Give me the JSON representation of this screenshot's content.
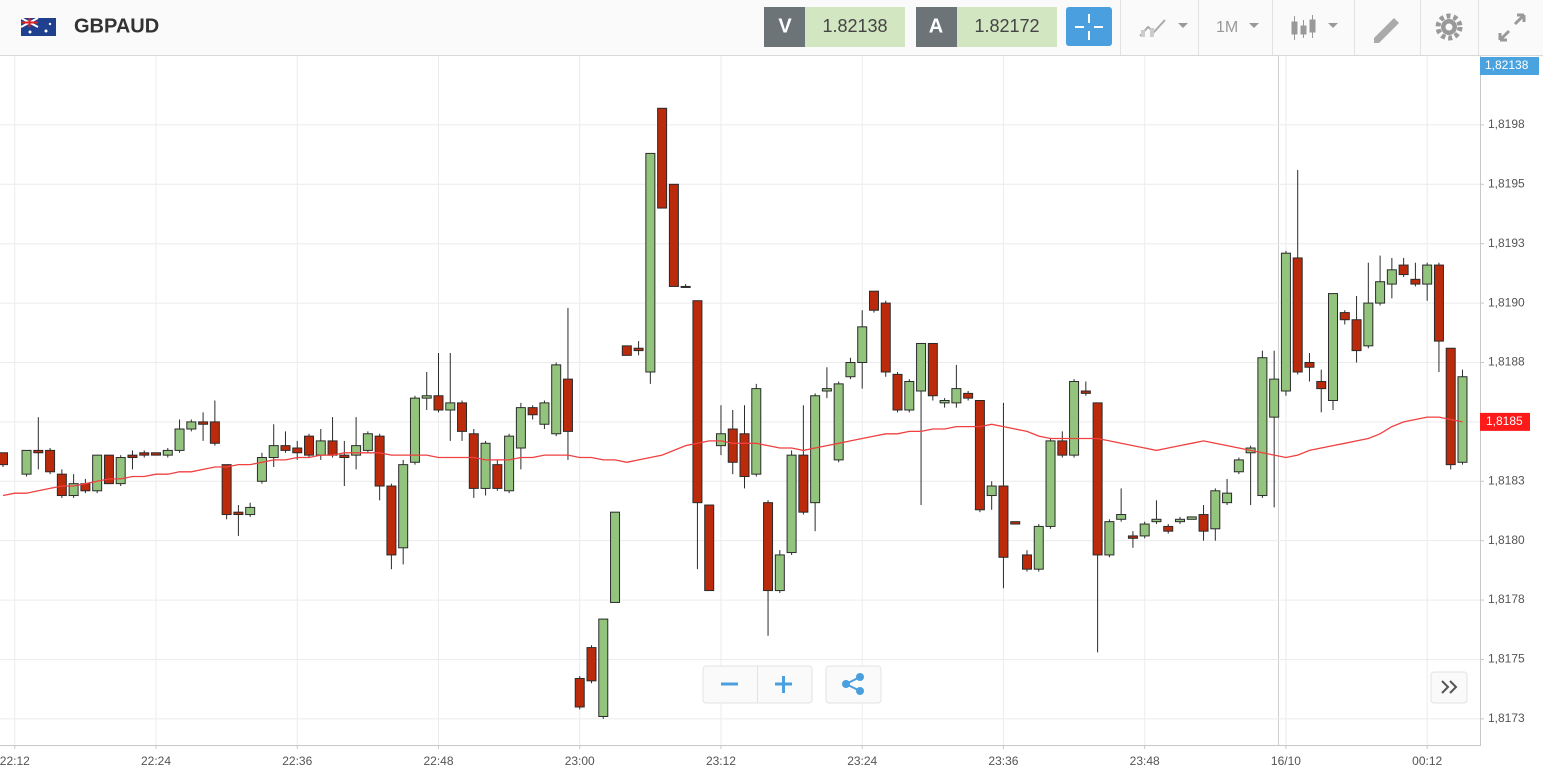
{
  "header": {
    "symbol": "GBPAUD",
    "bid_label": "V",
    "bid": "1.82138",
    "ask_label": "A",
    "ask": "1.82172",
    "timeframe": "1M"
  },
  "chart_data": {
    "type": "candlestick",
    "categories": [
      null,
      "22:12",
      null,
      null,
      null,
      null,
      null,
      null,
      null,
      null,
      null,
      null,
      null,
      "22:24",
      null,
      null,
      null,
      null,
      null,
      null,
      null,
      null,
      null,
      null,
      null,
      "22:36",
      null,
      null,
      null,
      null,
      null,
      null,
      null,
      null,
      null,
      null,
      null,
      "22:48",
      null,
      null,
      null,
      null,
      null,
      null,
      null,
      null,
      null,
      null,
      null,
      "23:00",
      null,
      null,
      null,
      null,
      null,
      null,
      null,
      null,
      null,
      null,
      null,
      "23:12",
      null,
      null,
      null,
      null,
      null,
      null,
      null,
      null,
      null,
      null,
      null,
      "23:24",
      null,
      null,
      null,
      null,
      null,
      null,
      null,
      null,
      null,
      null,
      null,
      "23:36",
      null,
      null,
      null,
      null,
      null,
      null,
      null,
      null,
      null,
      null,
      null,
      "23:48",
      null,
      null,
      null,
      null,
      null,
      null,
      null,
      null,
      null,
      null,
      null,
      "16/10",
      null,
      null,
      null,
      null,
      null,
      null,
      null,
      null,
      null,
      null,
      null,
      "00:12",
      null,
      null,
      null
    ],
    "open": [
      1.81837,
      null,
      1.81828,
      1.81838,
      1.81838,
      1.81828,
      1.81819,
      1.81824,
      1.81821,
      1.81836,
      1.81824,
      1.81836,
      1.81837,
      1.81837,
      1.81836,
      1.81838,
      1.81847,
      1.8185,
      1.8185,
      1.81832,
      1.81812,
      1.81811,
      1.81825,
      1.81835,
      1.8184,
      1.81839,
      1.81844,
      1.81836,
      1.81842,
      1.81836,
      1.81836,
      1.81838,
      1.81844,
      1.81823,
      1.81797,
      1.81833,
      1.8186,
      1.81861,
      1.81855,
      1.81858,
      1.81845,
      1.81822,
      1.81832,
      1.81821,
      1.81839,
      1.81856,
      1.81849,
      1.81845,
      1.81868,
      1.81742,
      1.81755,
      1.81726,
      1.81774,
      1.81882,
      1.81881,
      1.81871,
      1.81982,
      1.8195,
      1.81907,
      1.81901,
      1.81815,
      1.8184,
      1.81847,
      1.81845,
      1.81828,
      1.81816,
      1.81779,
      1.81795,
      1.81836,
      1.81816,
      1.81863,
      1.81834,
      1.81869,
      1.81875,
      1.81905,
      1.819,
      1.8187,
      1.81855,
      1.81863,
      1.81883,
      1.81858,
      1.81858,
      1.81862,
      1.81859,
      1.81819,
      1.81823,
      1.81808,
      1.81794,
      1.81788,
      1.81806,
      1.81842,
      1.81836,
      1.81863,
      1.81858,
      1.81794,
      1.81809,
      1.81802,
      1.81802,
      1.81808,
      1.81806,
      1.81808,
      1.81809,
      1.81811,
      1.81805,
      1.81816,
      1.81829,
      1.81837,
      1.81819,
      1.81852,
      1.81863,
      1.81919,
      1.81875,
      1.81867,
      1.81859,
      1.81896,
      1.81893,
      1.81882,
      1.819,
      1.81908,
      1.81916,
      1.8191,
      1.81908,
      1.81916,
      1.81881,
      1.81833
    ],
    "high": [
      1.81837,
      null,
      1.81838,
      1.81852,
      1.81839,
      1.8183,
      1.81828,
      1.81826,
      1.81836,
      1.81836,
      1.81836,
      1.81838,
      1.81838,
      1.81837,
      1.81839,
      1.81851,
      1.81851,
      1.81854,
      1.81859,
      1.81832,
      1.81815,
      1.81816,
      1.81837,
      1.81849,
      1.81846,
      1.81842,
      1.81845,
      1.81847,
      1.81852,
      1.81842,
      1.81852,
      1.81846,
      1.81845,
      1.81824,
      1.81834,
      1.81861,
      1.81871,
      1.81879,
      1.81879,
      1.81859,
      1.81847,
      1.81842,
      1.81834,
      1.81845,
      1.81858,
      1.81857,
      1.81859,
      1.81875,
      1.81898,
      1.81743,
      1.81756,
      1.81767,
      1.81812,
      1.81882,
      1.81884,
      1.81963,
      1.81982,
      1.8195,
      1.81908,
      1.81901,
      1.81815,
      1.81857,
      1.81855,
      1.81857,
      1.81866,
      1.81817,
      1.81796,
      1.81838,
      1.81857,
      1.81862,
      1.81873,
      1.81867,
      1.81877,
      1.81897,
      1.81905,
      1.81901,
      1.81871,
      1.81868,
      1.81883,
      1.81883,
      1.8186,
      1.81874,
      1.81863,
      1.81859,
      1.81825,
      1.81858,
      1.81808,
      1.81796,
      1.81807,
      1.81843,
      1.81846,
      1.81868,
      1.81867,
      1.81858,
      1.81809,
      1.81822,
      1.81804,
      1.81808,
      1.81817,
      1.81807,
      1.8181,
      1.8181,
      1.81815,
      1.81822,
      1.81826,
      1.81835,
      1.8184,
      1.8188,
      1.8188,
      1.81922,
      1.81956,
      1.81879,
      1.81872,
      1.81904,
      1.81897,
      1.81903,
      1.81917,
      1.8192,
      1.81919,
      1.81919,
      1.81917,
      1.81917,
      1.81917,
      1.81881,
      1.81872
    ],
    "low": [
      1.81831,
      null,
      1.81827,
      1.8183,
      1.81828,
      1.81818,
      1.81818,
      1.8182,
      1.8182,
      1.81824,
      1.81823,
      1.8183,
      1.81835,
      1.81836,
      1.81835,
      1.81837,
      1.81846,
      1.81842,
      1.8184,
      1.81809,
      1.81802,
      1.8181,
      1.81824,
      1.81831,
      1.81837,
      1.81834,
      1.81835,
      1.81834,
      1.81835,
      1.81823,
      1.8183,
      1.81837,
      1.81817,
      1.81788,
      1.8179,
      1.81832,
      1.81855,
      1.81854,
      1.81842,
      1.81842,
      1.81818,
      1.81819,
      1.81821,
      1.8182,
      1.8183,
      1.81851,
      1.81847,
      1.81844,
      1.81834,
      1.81729,
      1.8174,
      1.81725,
      1.81774,
      1.81878,
      1.81878,
      1.81866,
      1.8194,
      1.81907,
      1.81907,
      1.81788,
      1.81779,
      1.81836,
      1.81828,
      1.81822,
      1.81827,
      1.8176,
      1.81778,
      1.81794,
      1.81811,
      1.81804,
      1.8186,
      1.81833,
      1.81868,
      1.81864,
      1.81896,
      1.81869,
      1.81854,
      1.81854,
      1.81815,
      1.81859,
      1.81856,
      1.81856,
      1.81859,
      1.81812,
      1.81813,
      1.8178,
      1.81807,
      1.81787,
      1.81787,
      1.81805,
      1.81835,
      1.81835,
      1.81861,
      1.81753,
      1.81793,
      1.81808,
      1.81797,
      1.81801,
      1.81807,
      1.81803,
      1.81807,
      1.81809,
      1.818,
      1.818,
      1.81815,
      1.81828,
      1.81815,
      1.81818,
      1.81814,
      1.81861,
      1.8187,
      1.81867,
      1.81854,
      1.81855,
      1.81891,
      1.81875,
      1.81881,
      1.81899,
      1.81902,
      1.81911,
      1.81907,
      1.81901,
      1.81871,
      1.8183,
      1.81832
    ],
    "close": [
      1.81832,
      null,
      1.81838,
      1.81837,
      1.81829,
      1.81819,
      1.81824,
      1.81821,
      1.81836,
      1.81824,
      1.81835,
      1.81835,
      1.81836,
      1.81836,
      1.81838,
      1.81847,
      1.8185,
      1.81849,
      1.81841,
      1.81811,
      1.81811,
      1.81814,
      1.81835,
      1.8184,
      1.81838,
      1.81837,
      1.81836,
      1.81842,
      1.81836,
      1.81835,
      1.8184,
      1.81845,
      1.81823,
      1.81794,
      1.81832,
      1.8186,
      1.81861,
      1.81855,
      1.81858,
      1.81846,
      1.81822,
      1.81841,
      1.81822,
      1.81844,
      1.81856,
      1.81853,
      1.81858,
      1.81874,
      1.81846,
      1.8173,
      1.81741,
      1.81767,
      1.81812,
      1.81878,
      1.8188,
      1.81963,
      1.8194,
      1.81907,
      1.81907,
      1.81816,
      1.81779,
      1.81845,
      1.81833,
      1.81827,
      1.81864,
      1.81779,
      1.81794,
      1.81836,
      1.81812,
      1.81861,
      1.81864,
      1.81866,
      1.81875,
      1.8189,
      1.81897,
      1.81871,
      1.81855,
      1.81867,
      1.81883,
      1.81861,
      1.81859,
      1.81864,
      1.8186,
      1.81813,
      1.81823,
      1.81793,
      1.81807,
      1.81788,
      1.81806,
      1.81842,
      1.81836,
      1.81867,
      1.81862,
      1.81794,
      1.81808,
      1.81811,
      1.81801,
      1.81807,
      1.81809,
      1.81804,
      1.81809,
      1.8181,
      1.81804,
      1.81821,
      1.8182,
      1.81834,
      1.81839,
      1.81877,
      1.81868,
      1.81921,
      1.81871,
      1.81873,
      1.81864,
      1.81904,
      1.81893,
      1.8188,
      1.819,
      1.81909,
      1.81914,
      1.81912,
      1.81908,
      1.81916,
      1.81884,
      1.81832,
      1.81869
    ],
    "up_color": "#93c47d",
    "down_color": "#bb2a0b",
    "outline_color": "#2b2b2b",
    "ma": {
      "color": "#f04040",
      "values": [
        1.81819,
        1.8182,
        1.8182,
        1.81821,
        1.81822,
        1.81823,
        1.81823,
        1.81824,
        1.81825,
        1.81826,
        1.81826,
        1.81827,
        1.81827,
        1.81828,
        1.81828,
        1.81829,
        1.81829,
        1.8183,
        1.81831,
        1.81831,
        1.81832,
        1.81832,
        1.81833,
        1.81834,
        1.81834,
        1.81835,
        1.81835,
        1.81836,
        1.81836,
        1.81837,
        1.81837,
        1.81837,
        1.81837,
        1.81836,
        1.81836,
        1.81836,
        1.81836,
        1.81835,
        1.81835,
        1.81835,
        1.81835,
        1.81834,
        1.81834,
        1.81834,
        1.81835,
        1.81835,
        1.81836,
        1.81836,
        1.81836,
        1.81835,
        1.81835,
        1.81834,
        1.81834,
        1.81833,
        1.81834,
        1.81835,
        1.81836,
        1.81838,
        1.8184,
        1.81841,
        1.81842,
        1.81842,
        1.81841,
        1.81841,
        1.81841,
        1.8184,
        1.81839,
        1.81839,
        1.81838,
        1.81839,
        1.8184,
        1.81841,
        1.81842,
        1.81843,
        1.81844,
        1.81845,
        1.81845,
        1.81846,
        1.81846,
        1.81847,
        1.81847,
        1.81848,
        1.81848,
        1.81848,
        1.81849,
        1.81848,
        1.81847,
        1.81846,
        1.81844,
        1.81843,
        1.81843,
        1.81843,
        1.81843,
        1.81843,
        1.81842,
        1.81841,
        1.8184,
        1.81839,
        1.81838,
        1.81839,
        1.8184,
        1.81841,
        1.81842,
        1.81841,
        1.8184,
        1.81839,
        1.81838,
        1.81837,
        1.81836,
        1.81835,
        1.81836,
        1.81838,
        1.81839,
        1.8184,
        1.81841,
        1.81842,
        1.81843,
        1.81845,
        1.81848,
        1.8185,
        1.81851,
        1.81852,
        1.81852,
        1.81851,
        1.8185
      ],
      "last_label": {
        "value": 1.8185,
        "label": "1,8185"
      }
    },
    "current_price_label": "1,82138",
    "ylim": [
      1.81714,
      1.82004
    ],
    "yticks": [
      {
        "value": 1.81725,
        "label": "1,8173"
      },
      {
        "value": 1.8175,
        "label": "1,8175"
      },
      {
        "value": 1.81775,
        "label": "1,8178"
      },
      {
        "value": 1.818,
        "label": "1,8180"
      },
      {
        "value": 1.81825,
        "label": "1,8183"
      },
      {
        "value": 1.8185,
        "label": "1,8185"
      },
      {
        "value": 1.81875,
        "label": "1,8188"
      },
      {
        "value": 1.819,
        "label": "1,8190"
      },
      {
        "value": 1.81925,
        "label": "1,8193"
      },
      {
        "value": 1.8195,
        "label": "1,8195"
      },
      {
        "value": 1.81975,
        "label": "1,8198"
      }
    ],
    "grid": true
  }
}
